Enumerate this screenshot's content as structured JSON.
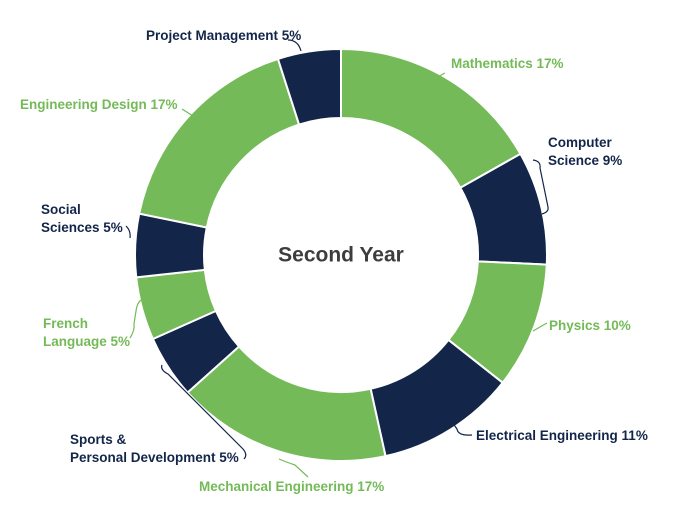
{
  "chart_data": {
    "type": "pie",
    "subtype": "donut",
    "center_label": "Second Year",
    "colors": {
      "green": "#74ba58",
      "navy": "#13264a"
    },
    "slices": [
      {
        "label": "Mathematics 17%",
        "value": 17,
        "color": "green"
      },
      {
        "label": "Computer Science 9%",
        "lines": [
          "Computer",
          "Science 9%"
        ],
        "value": 9,
        "color": "navy"
      },
      {
        "label": "Physics 10%",
        "value": 10,
        "color": "green"
      },
      {
        "label": "Electrical Engineering 11%",
        "value": 11,
        "color": "navy"
      },
      {
        "label": "Mechanical Engineering 17%",
        "value": 17,
        "color": "green"
      },
      {
        "label": "Sports & Personal Development 5%",
        "lines": [
          "Sports &",
          "Personal Development 5%"
        ],
        "value": 5,
        "color": "navy"
      },
      {
        "label": "French Language 5%",
        "lines": [
          "French",
          "Language 5%"
        ],
        "value": 5,
        "color": "green"
      },
      {
        "label": "Social Sciences 5%",
        "lines": [
          "Social",
          "Sciences 5%"
        ],
        "value": 5,
        "color": "navy"
      },
      {
        "label": "Engineering Design 17%",
        "value": 17,
        "color": "green"
      },
      {
        "label": "Project Management 5%",
        "value": 5,
        "color": "navy"
      }
    ]
  }
}
